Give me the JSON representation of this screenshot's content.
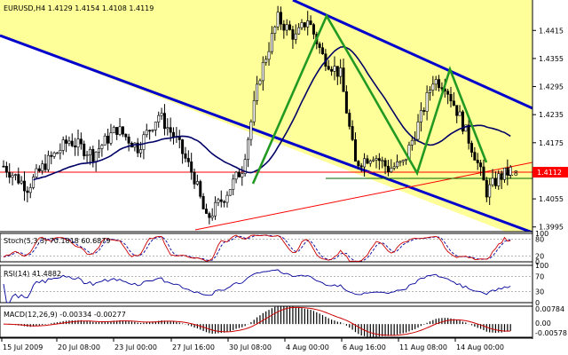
{
  "chart_data": {
    "type": "candlestick",
    "title": "EURUSD,H4",
    "ohlc": [
      "1.4129",
      "1.4154",
      "1.4108",
      "1.4119"
    ],
    "price_labels": [
      "1.4415",
      "1.4355",
      "1.4295",
      "1.4235",
      "1.4175",
      "1.4055",
      "1.3995"
    ],
    "price_range": [
      1.3985,
      1.448
    ],
    "current_price": "1.4112",
    "fib_label": "61.8",
    "x_labels": [
      "15 Jul 2009",
      "20 Jul 08:00",
      "23 Jul 00:00",
      "27 Jul 16:00",
      "30 Jul 08:00",
      "4 Aug 00:00",
      "6 Aug 16:00",
      "11 Aug 08:00",
      "14 Aug 00:00"
    ],
    "stoch": {
      "label": "Stoch(5,3,3) 70.1818 60.6879",
      "levels": [
        "100",
        "80",
        "20",
        "0"
      ],
      "range": [
        0,
        100
      ]
    },
    "rsi": {
      "label": "RSI(14) 41.4882",
      "levels": [
        "100",
        "70",
        "30",
        "0"
      ],
      "range": [
        0,
        100
      ]
    },
    "macd": {
      "label": "MACD(12,26,9) -0.00334 -0.00277",
      "levels": [
        "0.00784",
        "0.00",
        "-0.00578"
      ],
      "range": [
        -0.00578,
        0.00784
      ]
    },
    "colors": {
      "background": "#ffff99",
      "channel": "#0000cc",
      "zigzag": "#229922",
      "ma": "#000066",
      "trendline": "#ff0000",
      "stoch_main": "#cc0000",
      "stoch_signal": "#000099",
      "rsi": "#000099",
      "macd_signal": "#cc0000"
    }
  }
}
